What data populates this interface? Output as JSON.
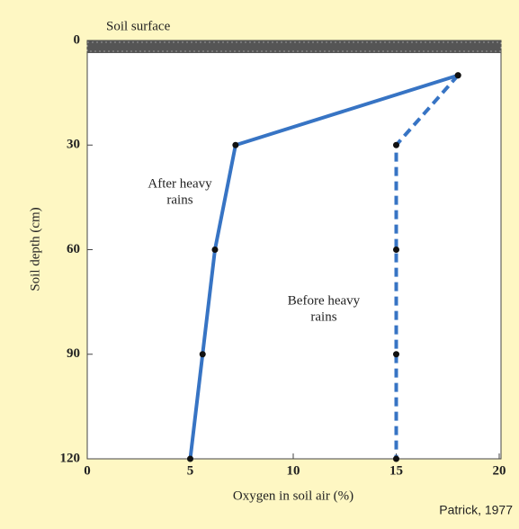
{
  "chart_data": {
    "type": "line",
    "annotation_top": "Soil surface",
    "x_label": "Oxygen in soil air (%)",
    "y_label": "Soil depth (cm)",
    "source": "Patrick, 1977",
    "xlim": [
      0,
      20
    ],
    "xticks": [
      0,
      5,
      10,
      15,
      20
    ],
    "ylim": [
      120,
      0
    ],
    "yticks": [
      0,
      30,
      60,
      90,
      120
    ],
    "series": [
      {
        "name": [
          "After heavy",
          "rains"
        ],
        "color": "#3774c4",
        "line_style": "solid",
        "x": [
          18,
          7.2,
          6.2,
          5.6,
          5
        ],
        "values": [
          10,
          30,
          60,
          90,
          120
        ]
      },
      {
        "name": [
          "Before heavy",
          "rains"
        ],
        "color": "#3774c4",
        "line_style": "dashed",
        "x": [
          18,
          15,
          15,
          15,
          15
        ],
        "values": [
          10,
          30,
          60,
          90,
          120
        ]
      }
    ]
  }
}
